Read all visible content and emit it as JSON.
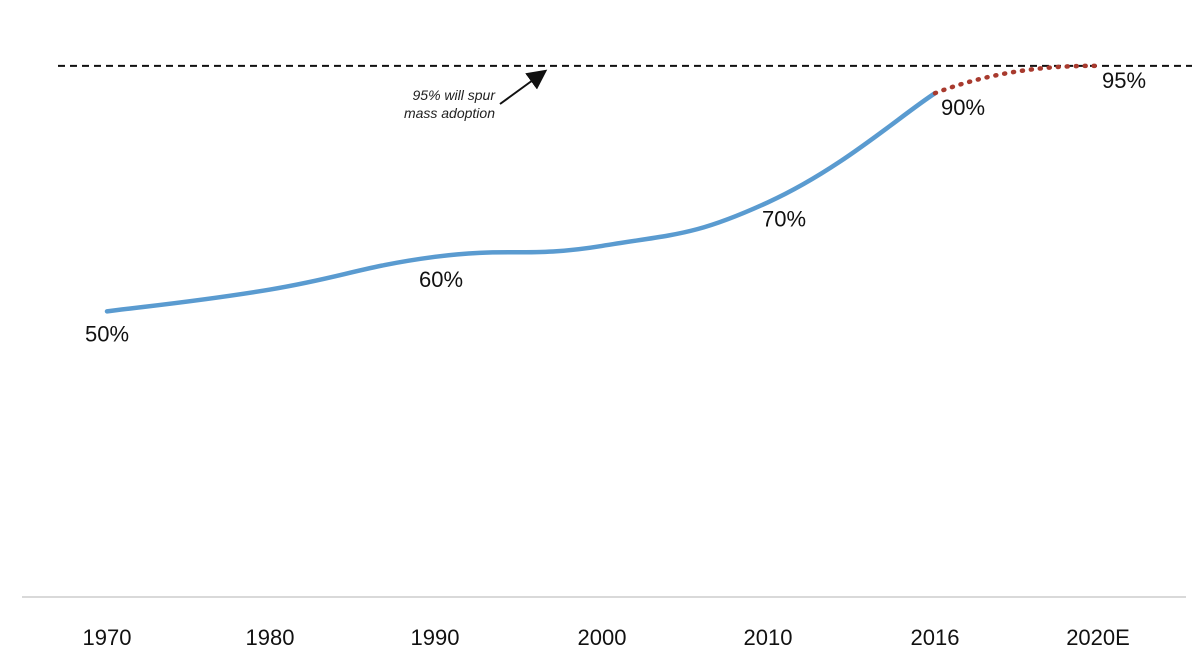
{
  "chart_data": {
    "type": "line",
    "title": "",
    "xlabel": "",
    "ylabel": "",
    "categories": [
      "1970",
      "1980",
      "1990",
      "2000",
      "2010",
      "2016",
      "2020E"
    ],
    "series": [
      {
        "style": "solid",
        "color": "#5a9bd0",
        "points": [
          {
            "x": "1970",
            "y": 50
          },
          {
            "x": "1980",
            "y": 54
          },
          {
            "x": "1990",
            "y": 60
          },
          {
            "x": "2000",
            "y": 62
          },
          {
            "x": "2010",
            "y": 70
          },
          {
            "x": "2016",
            "y": 90
          }
        ]
      },
      {
        "style": "dotted",
        "color": "#a83a2e",
        "points": [
          {
            "x": "2016",
            "y": 90
          },
          {
            "x": "2020E",
            "y": 95
          }
        ]
      }
    ],
    "data_labels": [
      {
        "text": "50%",
        "x": "1970",
        "y": 50
      },
      {
        "text": "60%",
        "x": "1990",
        "y": 60
      },
      {
        "text": "70%",
        "x": "2010",
        "y": 70
      },
      {
        "text": "90%",
        "x": "2016",
        "y": 90
      },
      {
        "text": "95%",
        "x": "2020E",
        "y": 95
      }
    ],
    "reference_line": {
      "y": 95,
      "style": "dashed",
      "color": "#111111"
    },
    "annotation": {
      "lines": [
        "95% will spur",
        "mass adoption"
      ],
      "arrow": true
    },
    "ylim": [
      20,
      97
    ],
    "grid": false,
    "legend": "none"
  }
}
